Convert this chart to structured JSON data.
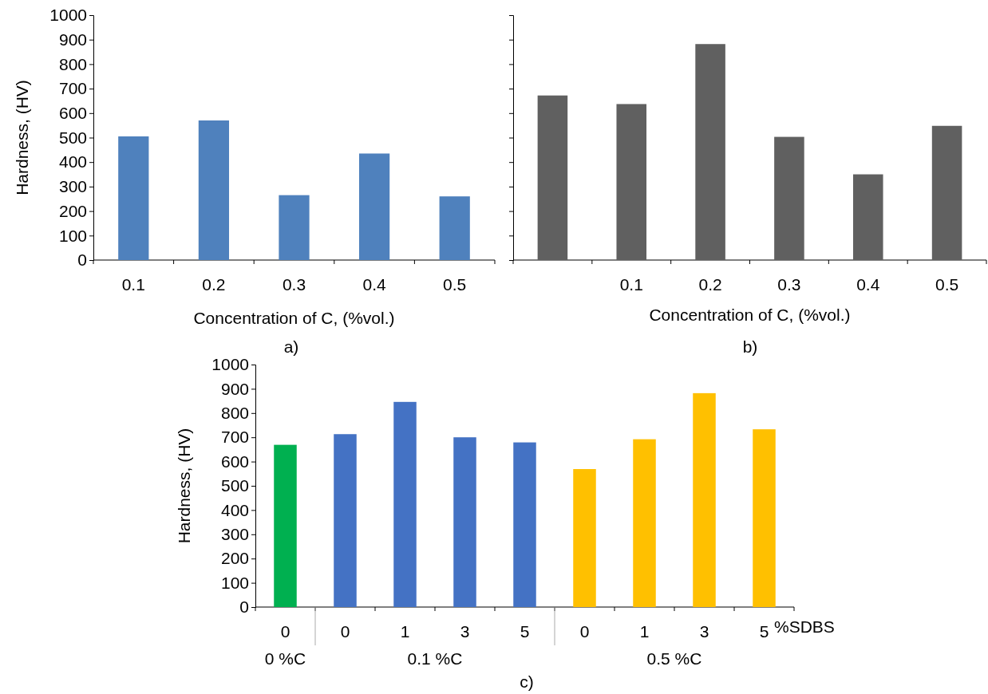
{
  "chart_data": [
    {
      "type": "bar",
      "title": "a)",
      "xlabel": "Concentration of C, (%vol.)",
      "ylabel": "Hardness, (HV)",
      "categories": [
        "0.1",
        "0.2",
        "0.3",
        "0.4",
        "0.5"
      ],
      "values": [
        505,
        570,
        265,
        435,
        260
      ],
      "color": "#4f81bd",
      "ylim": [
        0,
        1000
      ],
      "yticks": [
        0,
        100,
        200,
        300,
        400,
        500,
        600,
        700,
        800,
        900,
        1000
      ]
    },
    {
      "type": "bar",
      "title": "b)",
      "xlabel": "Concentration of C, (%vol.)",
      "categories": [
        null,
        "0.1",
        "0.2",
        "0.3",
        "0.4",
        "0.5"
      ],
      "values": [
        672,
        637,
        882,
        503,
        350,
        548
      ],
      "color": "#606060",
      "ylim": [
        0,
        1000
      ],
      "yticks": [
        0,
        100,
        200,
        300,
        400,
        500,
        600,
        700,
        800,
        900,
        1000
      ],
      "tick_labels": "x"
    },
    {
      "type": "bar",
      "title": "c)",
      "xlabel": "%SDBS",
      "ylabel": "Hardness, (HV)",
      "categories": [
        "0",
        "0",
        "1",
        "3",
        "5",
        "0",
        "1",
        "3",
        "5"
      ],
      "values": [
        669,
        713,
        846,
        700,
        679,
        569,
        692,
        882,
        733
      ],
      "colors": [
        "#00b050",
        "#4472c4",
        "#4472c4",
        "#4472c4",
        "#4472c4",
        "#ffc000",
        "#ffc000",
        "#ffc000",
        "#ffc000"
      ],
      "ylim": [
        0,
        1000
      ],
      "yticks": [
        0,
        100,
        200,
        300,
        400,
        500,
        600,
        700,
        800,
        900,
        1000
      ],
      "annotations": [
        "0 %C",
        "0.1 %C",
        "0.5 %C"
      ]
    }
  ]
}
